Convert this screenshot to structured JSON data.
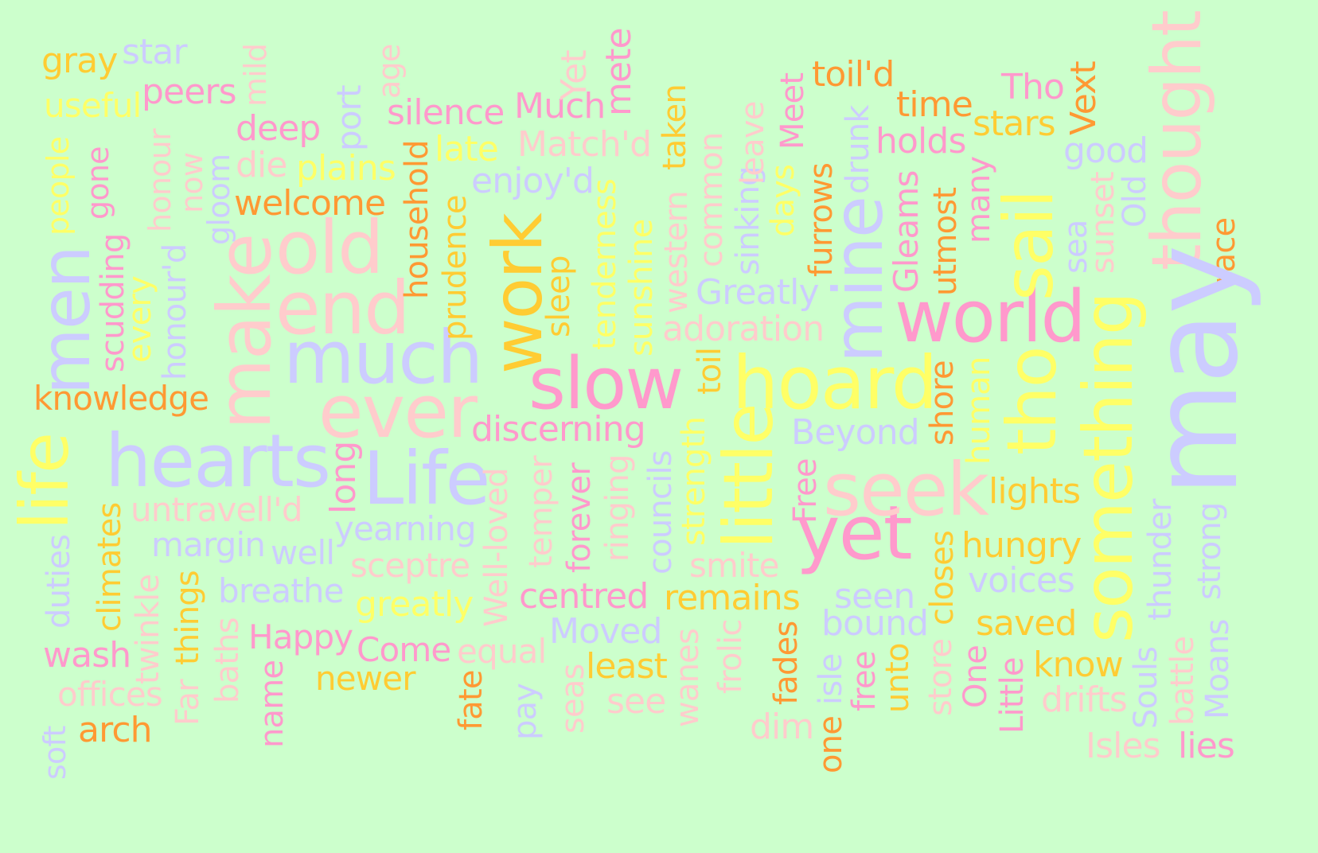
{
  "palette": {
    "background": "#ccffcc",
    "pink": "#ff99cc",
    "peach": "#ffcccc",
    "lavender": "#ccccff",
    "yellow": "#ffff66",
    "gold": "#ffcc33",
    "orange": "#ff9933"
  },
  "words": [
    {
      "text": "gray",
      "color": "gold"
    },
    {
      "text": "star",
      "color": "lavender"
    },
    {
      "text": "useful",
      "color": "yellow"
    },
    {
      "text": "peers",
      "color": "pink"
    },
    {
      "text": "mild",
      "color": "peach"
    },
    {
      "text": "age",
      "color": "peach"
    },
    {
      "text": "people",
      "color": "yellow"
    },
    {
      "text": "gone",
      "color": "pink"
    },
    {
      "text": "honour",
      "color": "peach"
    },
    {
      "text": "now",
      "color": "peach"
    },
    {
      "text": "gloom",
      "color": "lavender"
    },
    {
      "text": "port",
      "color": "lavender"
    },
    {
      "text": "deep",
      "color": "pink"
    },
    {
      "text": "die",
      "color": "peach"
    },
    {
      "text": "plains",
      "color": "yellow"
    },
    {
      "text": "welcome",
      "color": "orange"
    },
    {
      "text": "men",
      "color": "lavender"
    },
    {
      "text": "scudding",
      "color": "pink"
    },
    {
      "text": "every",
      "color": "yellow"
    },
    {
      "text": "honour'd",
      "color": "lavender"
    },
    {
      "text": "make",
      "color": "peach"
    },
    {
      "text": "old",
      "color": "peach"
    },
    {
      "text": "end",
      "color": "peach"
    },
    {
      "text": "much",
      "color": "lavender"
    },
    {
      "text": "knowledge",
      "color": "orange"
    },
    {
      "text": "ever",
      "color": "peach"
    },
    {
      "text": "life",
      "color": "yellow"
    },
    {
      "text": "hearts",
      "color": "lavender"
    },
    {
      "text": "long",
      "color": "pink"
    },
    {
      "text": "Life",
      "color": "lavender"
    },
    {
      "text": "untravell'd",
      "color": "peach"
    },
    {
      "text": "climates",
      "color": "gold"
    },
    {
      "text": "duties",
      "color": "lavender"
    },
    {
      "text": "margin",
      "color": "lavender"
    },
    {
      "text": "well",
      "color": "lavender"
    },
    {
      "text": "yearning",
      "color": "lavender"
    },
    {
      "text": "sceptre",
      "color": "peach"
    },
    {
      "text": "twinkle",
      "color": "peach"
    },
    {
      "text": "things",
      "color": "gold"
    },
    {
      "text": "breathe",
      "color": "lavender"
    },
    {
      "text": "greatly",
      "color": "yellow"
    },
    {
      "text": "wash",
      "color": "pink"
    },
    {
      "text": "Far",
      "color": "peach"
    },
    {
      "text": "baths",
      "color": "peach"
    },
    {
      "text": "Happy",
      "color": "pink"
    },
    {
      "text": "Come",
      "color": "pink"
    },
    {
      "text": "equal",
      "color": "peach"
    },
    {
      "text": "offices",
      "color": "peach"
    },
    {
      "text": "name",
      "color": "pink"
    },
    {
      "text": "newer",
      "color": "gold"
    },
    {
      "text": "fate",
      "color": "orange"
    },
    {
      "text": "pay",
      "color": "lavender"
    },
    {
      "text": "soft",
      "color": "lavender"
    },
    {
      "text": "arch",
      "color": "orange"
    },
    {
      "text": "silence",
      "color": "pink"
    },
    {
      "text": "Much",
      "color": "pink"
    },
    {
      "text": "Yet",
      "color": "peach"
    },
    {
      "text": "mete",
      "color": "pink"
    },
    {
      "text": "household",
      "color": "orange"
    },
    {
      "text": "late",
      "color": "yellow"
    },
    {
      "text": "Match'd",
      "color": "peach"
    },
    {
      "text": "enjoy'd",
      "color": "lavender"
    },
    {
      "text": "prudence",
      "color": "gold"
    },
    {
      "text": "work",
      "color": "gold"
    },
    {
      "text": "sleep",
      "color": "gold"
    },
    {
      "text": "tenderness",
      "color": "yellow"
    },
    {
      "text": "sunshine",
      "color": "yellow"
    },
    {
      "text": "taken",
      "color": "gold"
    },
    {
      "text": "western",
      "color": "peach"
    },
    {
      "text": "common",
      "color": "peach"
    },
    {
      "text": "slow",
      "color": "pink"
    },
    {
      "text": "discerning",
      "color": "pink"
    },
    {
      "text": "Well-loved",
      "color": "peach"
    },
    {
      "text": "temper",
      "color": "peach"
    },
    {
      "text": "forever",
      "color": "pink"
    },
    {
      "text": "ringing",
      "color": "peach"
    },
    {
      "text": "councils",
      "color": "lavender"
    },
    {
      "text": "strength",
      "color": "yellow"
    },
    {
      "text": "toil",
      "color": "gold"
    },
    {
      "text": "centred",
      "color": "pink"
    },
    {
      "text": "Moved",
      "color": "lavender"
    },
    {
      "text": "least",
      "color": "gold"
    },
    {
      "text": "seas",
      "color": "peach"
    },
    {
      "text": "see",
      "color": "peach"
    },
    {
      "text": "wanes",
      "color": "peach"
    },
    {
      "text": "frolic",
      "color": "peach"
    },
    {
      "text": "sinking",
      "color": "lavender"
    },
    {
      "text": "leave",
      "color": "peach"
    },
    {
      "text": "Greatly",
      "color": "lavender"
    },
    {
      "text": "adoration",
      "color": "peach"
    },
    {
      "text": "hoard",
      "color": "yellow"
    },
    {
      "text": "little",
      "color": "yellow"
    },
    {
      "text": "smite",
      "color": "peach"
    },
    {
      "text": "remains",
      "color": "gold"
    },
    {
      "text": "days",
      "color": "yellow"
    },
    {
      "text": "Meet",
      "color": "pink"
    },
    {
      "text": "toil'd",
      "color": "orange"
    },
    {
      "text": "furrows",
      "color": "orange"
    },
    {
      "text": "drunk",
      "color": "lavender"
    },
    {
      "text": "mine",
      "color": "lavender"
    },
    {
      "text": "Beyond",
      "color": "lavender"
    },
    {
      "text": "Free",
      "color": "pink"
    },
    {
      "text": "yet",
      "color": "pink"
    },
    {
      "text": "seen",
      "color": "lavender"
    },
    {
      "text": "bound",
      "color": "lavender"
    },
    {
      "text": "fades",
      "color": "orange"
    },
    {
      "text": "dim",
      "color": "peach"
    },
    {
      "text": "isle",
      "color": "lavender"
    },
    {
      "text": "one",
      "color": "orange"
    },
    {
      "text": "free",
      "color": "pink"
    },
    {
      "text": "unto",
      "color": "gold"
    },
    {
      "text": "time",
      "color": "orange"
    },
    {
      "text": "holds",
      "color": "pink"
    },
    {
      "text": "Gleams",
      "color": "pink"
    },
    {
      "text": "utmost",
      "color": "orange"
    },
    {
      "text": "world",
      "color": "pink"
    },
    {
      "text": "shore",
      "color": "orange"
    },
    {
      "text": "seek",
      "color": "peach"
    },
    {
      "text": "human",
      "color": "yellow"
    },
    {
      "text": "closes",
      "color": "gold"
    },
    {
      "text": "store",
      "color": "peach"
    },
    {
      "text": "Tho",
      "color": "pink"
    },
    {
      "text": "stars",
      "color": "gold"
    },
    {
      "text": "many",
      "color": "pink"
    },
    {
      "text": "Vext",
      "color": "orange"
    },
    {
      "text": "good",
      "color": "lavender"
    },
    {
      "text": "sail",
      "color": "yellow"
    },
    {
      "text": "sea",
      "color": "lavender"
    },
    {
      "text": "tho",
      "color": "yellow"
    },
    {
      "text": "something",
      "color": "yellow"
    },
    {
      "text": "lights",
      "color": "gold"
    },
    {
      "text": "hungry",
      "color": "gold"
    },
    {
      "text": "voices",
      "color": "lavender"
    },
    {
      "text": "saved",
      "color": "gold"
    },
    {
      "text": "One",
      "color": "pink"
    },
    {
      "text": "Little",
      "color": "pink"
    },
    {
      "text": "know",
      "color": "gold"
    },
    {
      "text": "drifts",
      "color": "peach"
    },
    {
      "text": "Isles",
      "color": "peach"
    },
    {
      "text": "Old",
      "color": "lavender"
    },
    {
      "text": "sunset",
      "color": "peach"
    },
    {
      "text": "thought",
      "color": "peach"
    },
    {
      "text": "race",
      "color": "orange"
    },
    {
      "text": "may",
      "color": "lavender"
    },
    {
      "text": "thunder",
      "color": "lavender"
    },
    {
      "text": "strong",
      "color": "lavender"
    },
    {
      "text": "Souls",
      "color": "lavender"
    },
    {
      "text": "battle",
      "color": "peach"
    },
    {
      "text": "Moans",
      "color": "lavender"
    },
    {
      "text": "lies",
      "color": "pink"
    }
  ]
}
